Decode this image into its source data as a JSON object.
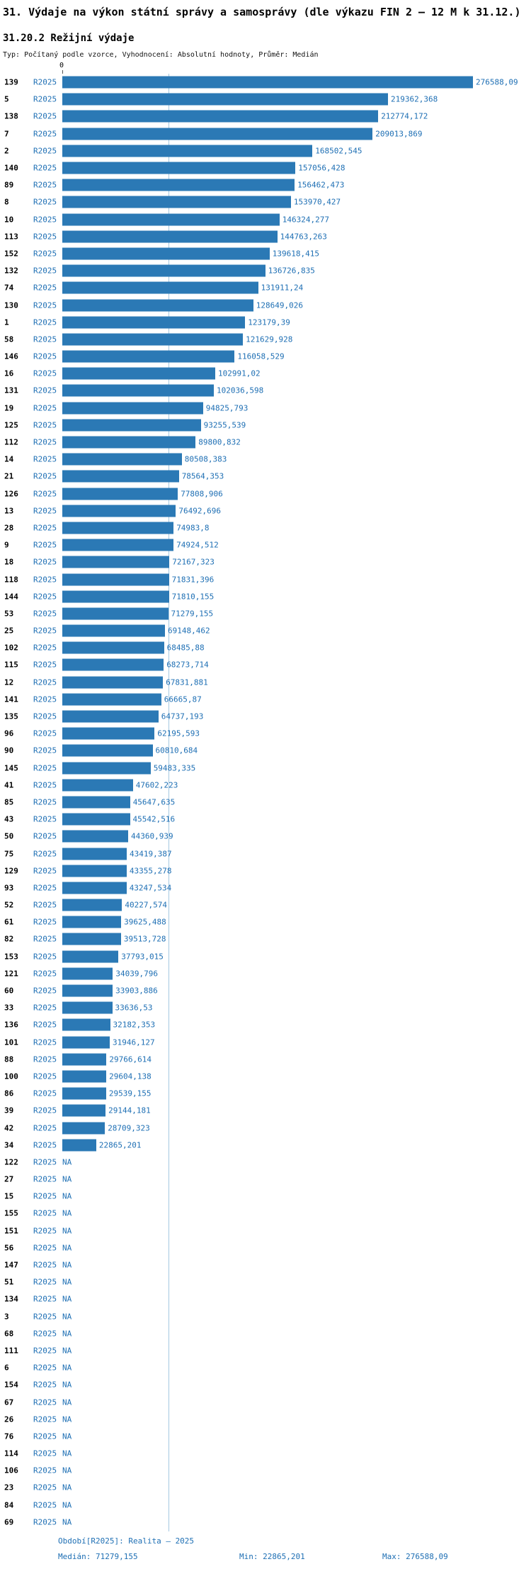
{
  "title": "31. Výdaje na výkon státní správy a samosprávy (dle výkazu FIN 2 – 12 M k 31.12.)",
  "subtitle": "31.20.2 Režijní výdaje",
  "meta": "Typ: Počítaný podle vzorce, Vyhodnocení: Absolutní hodnoty, Průměr: Medián",
  "axis": {
    "zero_label": "0"
  },
  "footer": {
    "period": "Období[R2025]: Realita – 2025",
    "median": "Medián: 71279,155",
    "min": "Min: 22865,201",
    "max": "Max: 276588,09"
  },
  "colors": {
    "bar": "#2b79b5",
    "text_blue": "#1e6fb4",
    "median_line": "#a5c8e1"
  },
  "chart_data": {
    "type": "bar",
    "orientation": "horizontal",
    "series_label": "R2025",
    "title": "31.20.2 Režijní výdaje",
    "xlabel": "",
    "ylabel": "",
    "xlim": [
      0,
      276588.09
    ],
    "median": 71279.155,
    "max_value": 276588.09,
    "min_value": 22865.201,
    "na_label": "NA",
    "rows": [
      {
        "id": "139",
        "value": 276588.09,
        "label": "276588,09"
      },
      {
        "id": "5",
        "value": 219362.368,
        "label": "219362,368"
      },
      {
        "id": "138",
        "value": 212774.172,
        "label": "212774,172"
      },
      {
        "id": "7",
        "value": 209013.869,
        "label": "209013,869"
      },
      {
        "id": "2",
        "value": 168502.545,
        "label": "168502,545"
      },
      {
        "id": "140",
        "value": 157056.428,
        "label": "157056,428"
      },
      {
        "id": "89",
        "value": 156462.473,
        "label": "156462,473"
      },
      {
        "id": "8",
        "value": 153970.427,
        "label": "153970,427"
      },
      {
        "id": "10",
        "value": 146324.277,
        "label": "146324,277"
      },
      {
        "id": "113",
        "value": 144763.263,
        "label": "144763,263"
      },
      {
        "id": "152",
        "value": 139618.415,
        "label": "139618,415"
      },
      {
        "id": "132",
        "value": 136726.835,
        "label": "136726,835"
      },
      {
        "id": "74",
        "value": 131911.24,
        "label": "131911,24"
      },
      {
        "id": "130",
        "value": 128649.026,
        "label": "128649,026"
      },
      {
        "id": "1",
        "value": 123179.39,
        "label": "123179,39"
      },
      {
        "id": "58",
        "value": 121629.928,
        "label": "121629,928"
      },
      {
        "id": "146",
        "value": 116058.529,
        "label": "116058,529"
      },
      {
        "id": "16",
        "value": 102991.02,
        "label": "102991,02"
      },
      {
        "id": "131",
        "value": 102036.598,
        "label": "102036,598"
      },
      {
        "id": "19",
        "value": 94825.793,
        "label": "94825,793"
      },
      {
        "id": "125",
        "value": 93255.539,
        "label": "93255,539"
      },
      {
        "id": "112",
        "value": 89800.832,
        "label": "89800,832"
      },
      {
        "id": "14",
        "value": 80508.383,
        "label": "80508,383"
      },
      {
        "id": "21",
        "value": 78564.353,
        "label": "78564,353"
      },
      {
        "id": "126",
        "value": 77808.906,
        "label": "77808,906"
      },
      {
        "id": "13",
        "value": 76492.696,
        "label": "76492,696"
      },
      {
        "id": "28",
        "value": 74983.8,
        "label": "74983,8"
      },
      {
        "id": "9",
        "value": 74924.512,
        "label": "74924,512"
      },
      {
        "id": "18",
        "value": 72167.323,
        "label": "72167,323"
      },
      {
        "id": "118",
        "value": 71831.396,
        "label": "71831,396"
      },
      {
        "id": "144",
        "value": 71810.155,
        "label": "71810,155"
      },
      {
        "id": "53",
        "value": 71279.155,
        "label": "71279,155"
      },
      {
        "id": "25",
        "value": 69148.462,
        "label": "69148,462"
      },
      {
        "id": "102",
        "value": 68485.88,
        "label": "68485,88"
      },
      {
        "id": "115",
        "value": 68273.714,
        "label": "68273,714"
      },
      {
        "id": "12",
        "value": 67831.881,
        "label": "67831,881"
      },
      {
        "id": "141",
        "value": 66665.87,
        "label": "66665,87"
      },
      {
        "id": "135",
        "value": 64737.193,
        "label": "64737,193"
      },
      {
        "id": "96",
        "value": 62195.593,
        "label": "62195,593"
      },
      {
        "id": "90",
        "value": 60810.684,
        "label": "60810,684"
      },
      {
        "id": "145",
        "value": 59483.335,
        "label": "59483,335"
      },
      {
        "id": "41",
        "value": 47602.223,
        "label": "47602,223"
      },
      {
        "id": "85",
        "value": 45647.635,
        "label": "45647,635"
      },
      {
        "id": "43",
        "value": 45542.516,
        "label": "45542,516"
      },
      {
        "id": "50",
        "value": 44360.939,
        "label": "44360,939"
      },
      {
        "id": "75",
        "value": 43419.387,
        "label": "43419,387"
      },
      {
        "id": "129",
        "value": 43355.278,
        "label": "43355,278"
      },
      {
        "id": "93",
        "value": 43247.534,
        "label": "43247,534"
      },
      {
        "id": "52",
        "value": 40227.574,
        "label": "40227,574"
      },
      {
        "id": "61",
        "value": 39625.488,
        "label": "39625,488"
      },
      {
        "id": "82",
        "value": 39513.728,
        "label": "39513,728"
      },
      {
        "id": "153",
        "value": 37793.015,
        "label": "37793,015"
      },
      {
        "id": "121",
        "value": 34039.796,
        "label": "34039,796"
      },
      {
        "id": "60",
        "value": 33903.886,
        "label": "33903,886"
      },
      {
        "id": "33",
        "value": 33636.53,
        "label": "33636,53"
      },
      {
        "id": "136",
        "value": 32182.353,
        "label": "32182,353"
      },
      {
        "id": "101",
        "value": 31946.127,
        "label": "31946,127"
      },
      {
        "id": "88",
        "value": 29766.614,
        "label": "29766,614"
      },
      {
        "id": "100",
        "value": 29604.138,
        "label": "29604,138"
      },
      {
        "id": "86",
        "value": 29539.155,
        "label": "29539,155"
      },
      {
        "id": "39",
        "value": 29144.181,
        "label": "29144,181"
      },
      {
        "id": "42",
        "value": 28709.323,
        "label": "28709,323"
      },
      {
        "id": "34",
        "value": 22865.201,
        "label": "22865,201"
      },
      {
        "id": "122",
        "value": null,
        "label": "NA"
      },
      {
        "id": "27",
        "value": null,
        "label": "NA"
      },
      {
        "id": "15",
        "value": null,
        "label": "NA"
      },
      {
        "id": "155",
        "value": null,
        "label": "NA"
      },
      {
        "id": "151",
        "value": null,
        "label": "NA"
      },
      {
        "id": "56",
        "value": null,
        "label": "NA"
      },
      {
        "id": "147",
        "value": null,
        "label": "NA"
      },
      {
        "id": "51",
        "value": null,
        "label": "NA"
      },
      {
        "id": "134",
        "value": null,
        "label": "NA"
      },
      {
        "id": "3",
        "value": null,
        "label": "NA"
      },
      {
        "id": "68",
        "value": null,
        "label": "NA"
      },
      {
        "id": "111",
        "value": null,
        "label": "NA"
      },
      {
        "id": "6",
        "value": null,
        "label": "NA"
      },
      {
        "id": "154",
        "value": null,
        "label": "NA"
      },
      {
        "id": "67",
        "value": null,
        "label": "NA"
      },
      {
        "id": "26",
        "value": null,
        "label": "NA"
      },
      {
        "id": "76",
        "value": null,
        "label": "NA"
      },
      {
        "id": "114",
        "value": null,
        "label": "NA"
      },
      {
        "id": "106",
        "value": null,
        "label": "NA"
      },
      {
        "id": "23",
        "value": null,
        "label": "NA"
      },
      {
        "id": "84",
        "value": null,
        "label": "NA"
      },
      {
        "id": "69",
        "value": null,
        "label": "NA"
      }
    ]
  }
}
